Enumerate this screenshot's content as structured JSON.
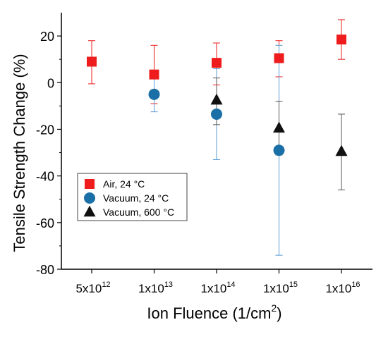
{
  "chart_data": {
    "type": "scatter",
    "x_axis": {
      "label_main": "Ion Fluence (1/cm",
      "label_sup": "2",
      "label_tail": ")",
      "categories": [
        {
          "mantissa": "5x10",
          "exp": "12"
        },
        {
          "mantissa": "1x10",
          "exp": "13"
        },
        {
          "mantissa": "1x10",
          "exp": "14"
        },
        {
          "mantissa": "1x10",
          "exp": "15"
        },
        {
          "mantissa": "1x10",
          "exp": "16"
        }
      ]
    },
    "y_axis": {
      "label": "Tensile Strength Change (%)",
      "ylim": [
        -80,
        30
      ],
      "ticks": [
        20,
        0,
        -20,
        -40,
        -60,
        -80
      ]
    },
    "grid": false,
    "legend_position": "left-middle",
    "series": [
      {
        "name": "Air, 24 °C",
        "marker": "square",
        "color": "#ee1c1c",
        "error_color": "#ee1c1c",
        "points": [
          {
            "x": 0,
            "y": 9,
            "err_low": -0.5,
            "err_high": 18
          },
          {
            "x": 1,
            "y": 3.5,
            "err_low": -9,
            "err_high": 16
          },
          {
            "x": 2,
            "y": 8.5,
            "err_low": -1,
            "err_high": 17
          },
          {
            "x": 3,
            "y": 10.5,
            "err_low": 2.5,
            "err_high": 18
          },
          {
            "x": 4,
            "y": 18.5,
            "err_low": 10,
            "err_high": 27
          }
        ]
      },
      {
        "name": "Vacuum,  24 °C",
        "marker": "circle",
        "color": "#1a6fa6",
        "error_color": "#5b9bd5",
        "points": [
          {
            "x": 1,
            "y": -5,
            "err_low": -12.5,
            "err_high": 2
          },
          {
            "x": 2,
            "y": -13.5,
            "err_low": -33,
            "err_high": 6
          },
          {
            "x": 3,
            "y": -29,
            "err_low": -74,
            "err_high": 16
          }
        ]
      },
      {
        "name": "Vacuum, 600 °C",
        "marker": "triangle",
        "color": "#111111",
        "error_color": "#555555",
        "points": [
          {
            "x": 2,
            "y": -7.5,
            "err_low": -18,
            "err_high": 2
          },
          {
            "x": 3,
            "y": -19.5,
            "err_low": -31,
            "err_high": -8
          },
          {
            "x": 4,
            "y": -29.5,
            "err_low": -46,
            "err_high": -13.5
          }
        ]
      }
    ]
  }
}
